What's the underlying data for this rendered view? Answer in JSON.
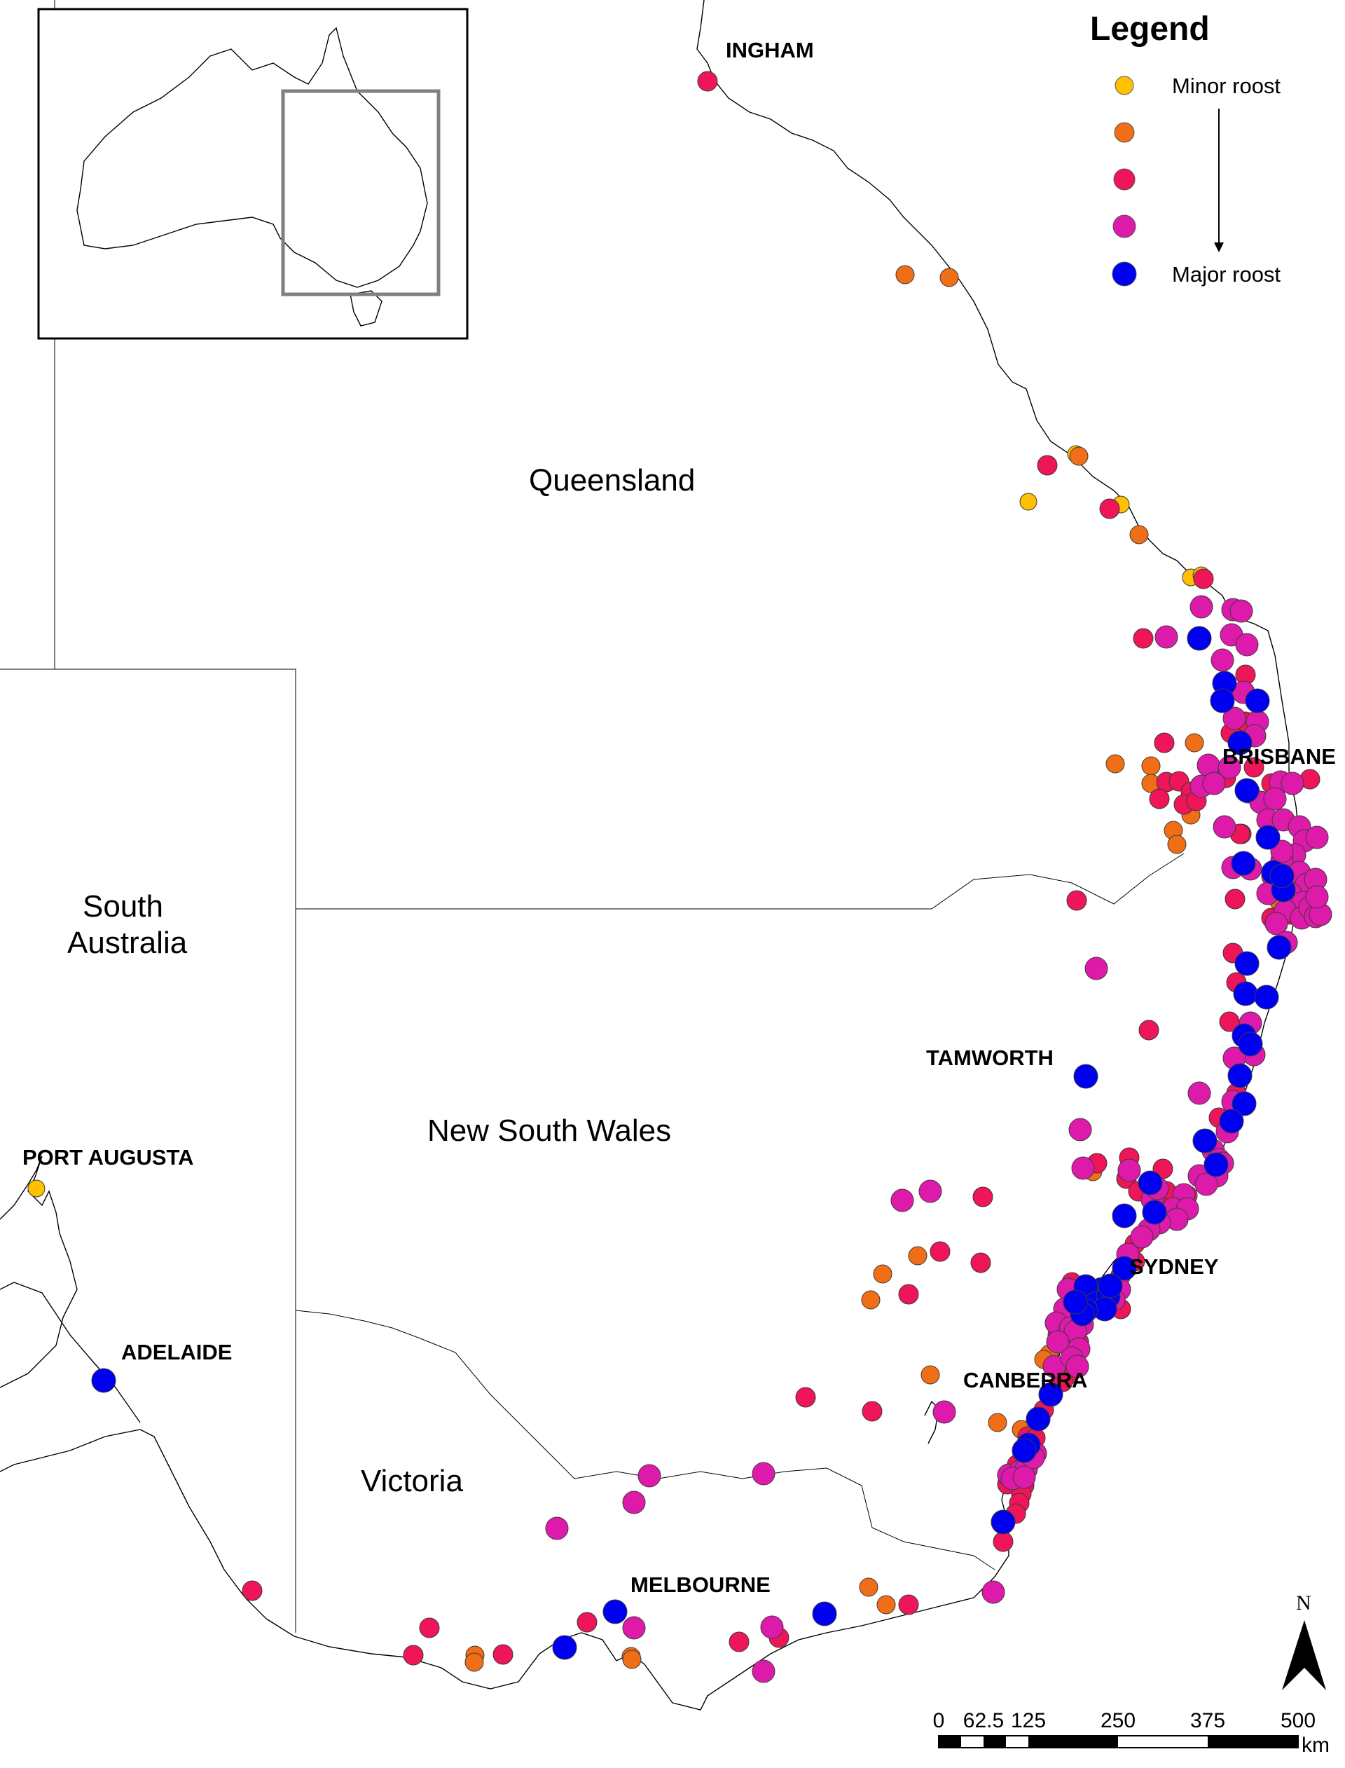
{
  "legend": {
    "title": "Legend",
    "minor_label": "Minor roost",
    "major_label": "Major roost",
    "levels": [
      {
        "color": "#FFC000"
      },
      {
        "color": "#F06E16"
      },
      {
        "color": "#EE1558"
      },
      {
        "color": "#DD1AAA"
      },
      {
        "color": "#0000F0"
      }
    ]
  },
  "states": {
    "queensland": "Queensland",
    "nsw": "New South Wales",
    "victoria": "Victoria",
    "sa_line1": "South",
    "sa_line2": "Australia"
  },
  "cities": {
    "ingham": "INGHAM",
    "brisbane": "BRISBANE",
    "tamworth": "TAMWORTH",
    "sydney": "SYDNEY",
    "canberra": "CANBERRA",
    "melbourne": "MELBOURNE",
    "adelaide": "ADELAIDE",
    "port_augusta": "PORT AUGUSTA"
  },
  "north_arrow": {
    "label": "N"
  },
  "scale_bar": {
    "ticks": [
      "0",
      "62.5",
      "125",
      "250",
      "375",
      "500"
    ],
    "unit": "km"
  },
  "colors": {
    "minor": "#FFC000",
    "orange": "#F06E16",
    "red": "#EE1558",
    "magenta": "#DD1AAA",
    "major": "#0000F0",
    "inset_frame": "#808080"
  }
}
